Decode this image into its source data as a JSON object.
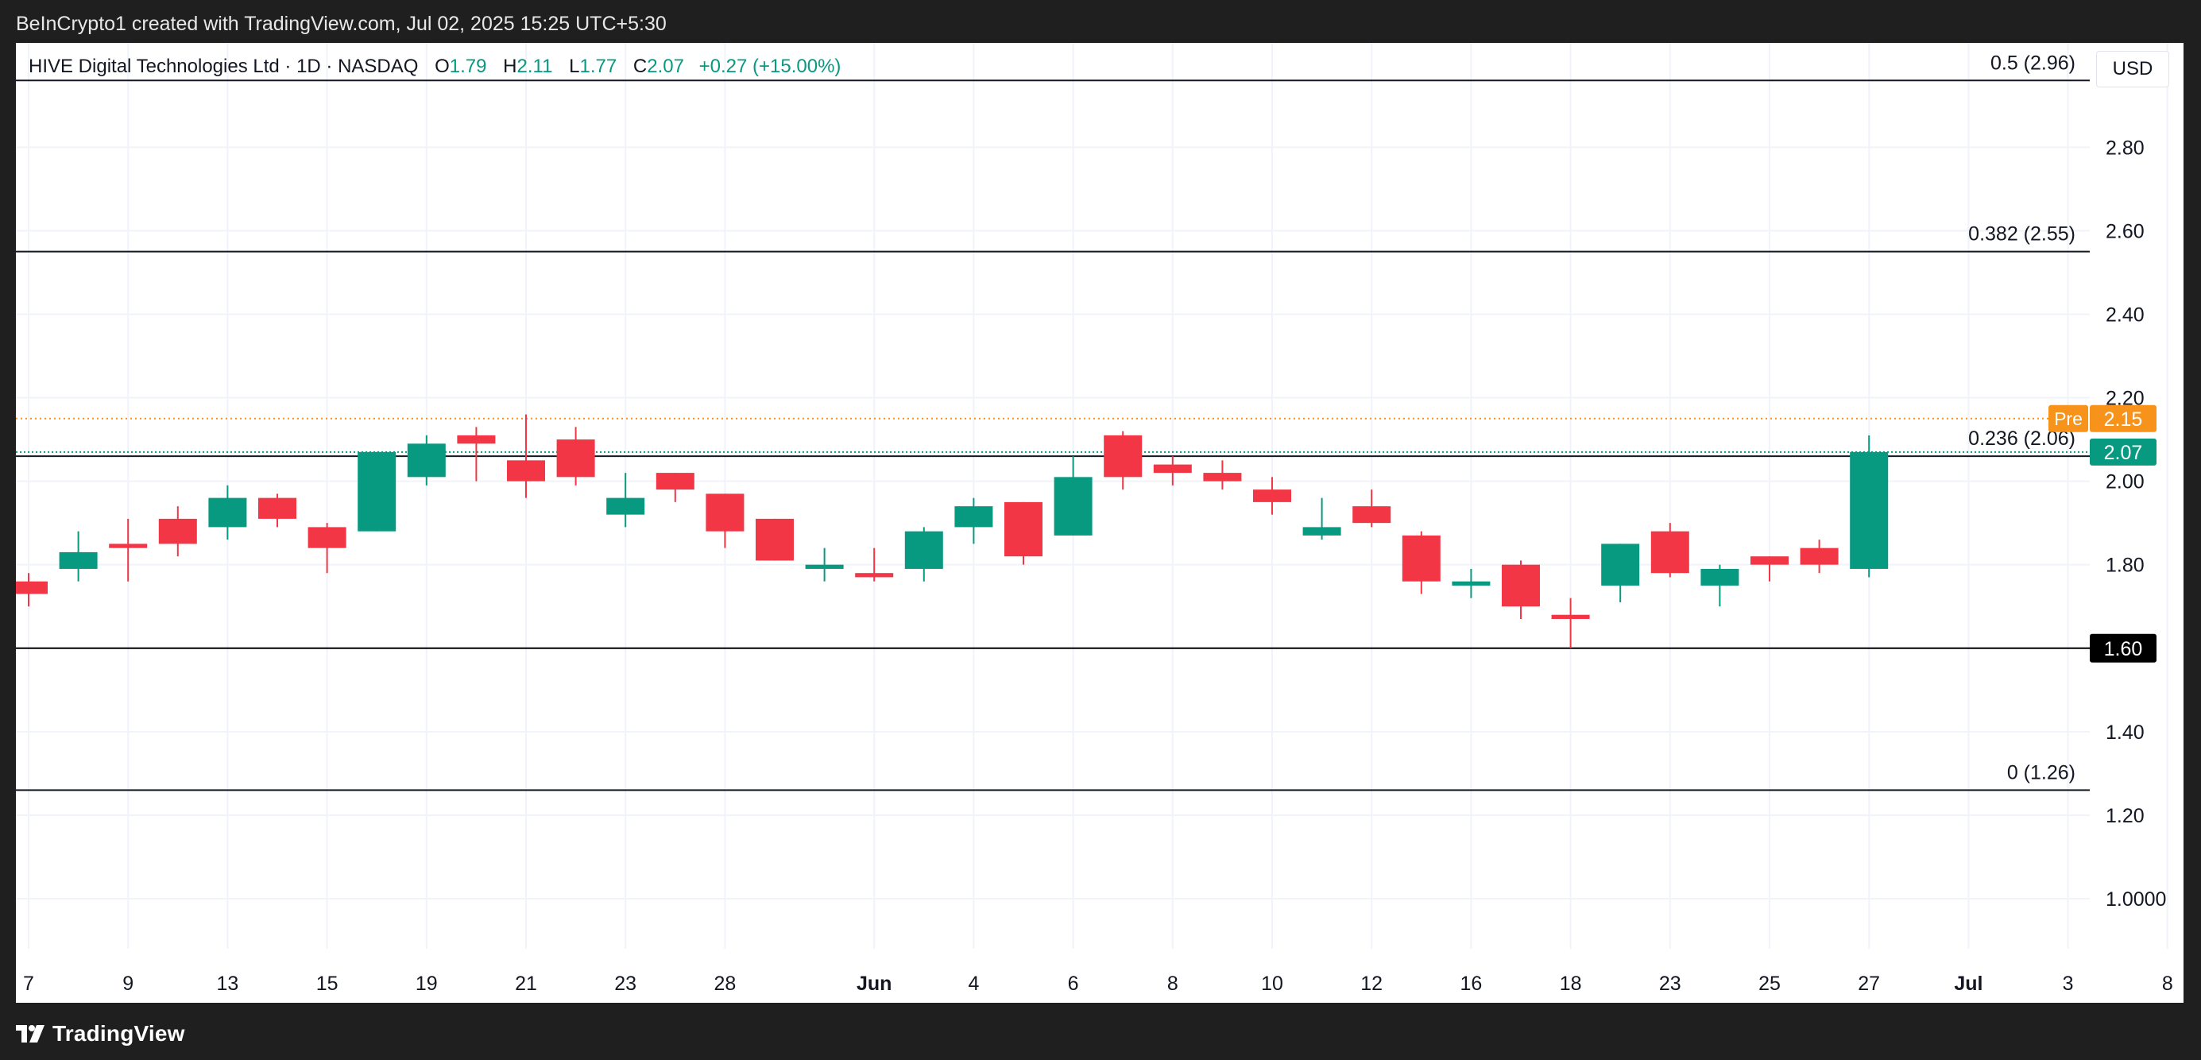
{
  "header": {
    "attribution": "BeInCrypto1 created with TradingView.com, Jul 02, 2025 15:25 UTC+5:30"
  },
  "legend": {
    "symbol": "HIVE Digital Technologies Ltd · 1D · NASDAQ",
    "open_label": "O",
    "open_value": "1.79",
    "high_label": "H",
    "high_value": "2.11",
    "low_label": "L",
    "low_value": "1.77",
    "close_label": "C",
    "close_value": "2.07",
    "change": "+0.27 (+15.00%)"
  },
  "currency": "USD",
  "footer": {
    "brand": "TradingView"
  },
  "colors": {
    "up": "#089981",
    "down": "#f23645",
    "pre": "#f7931a",
    "grid": "#f0f3fa",
    "fib": "#131722"
  },
  "chart_data": {
    "type": "candlestick",
    "title": "HIVE Digital Technologies Ltd · 1D · NASDAQ",
    "ylim": [
      0.88,
      3.05
    ],
    "grid": true,
    "y_ticks": [
      {
        "value": 2.8,
        "label": "2.80"
      },
      {
        "value": 2.6,
        "label": "2.60"
      },
      {
        "value": 2.4,
        "label": "2.40"
      },
      {
        "value": 2.2,
        "label": "2.20"
      },
      {
        "value": 2.0,
        "label": "2.00"
      },
      {
        "value": 1.8,
        "label": "1.80"
      },
      {
        "value": 1.4,
        "label": "1.40"
      },
      {
        "value": 1.2,
        "label": "1.20"
      },
      {
        "value": 1.0,
        "label": "1.0000"
      }
    ],
    "x_ticks": [
      "7",
      "9",
      "13",
      "15",
      "19",
      "21",
      "23",
      "28",
      "Jun",
      "4",
      "6",
      "8",
      "10",
      "12",
      "16",
      "18",
      "23",
      "25",
      "27",
      "Jul",
      "3",
      "8"
    ],
    "x_tick_bold": [
      false,
      false,
      false,
      false,
      false,
      false,
      false,
      false,
      true,
      false,
      false,
      false,
      false,
      false,
      false,
      false,
      false,
      false,
      false,
      true,
      false,
      false
    ],
    "candles": [
      {
        "date": "2025-05-07",
        "o": 1.76,
        "h": 1.78,
        "l": 1.7,
        "c": 1.73
      },
      {
        "date": "2025-05-08",
        "o": 1.79,
        "h": 1.88,
        "l": 1.76,
        "c": 1.83
      },
      {
        "date": "2025-05-09",
        "o": 1.85,
        "h": 1.91,
        "l": 1.76,
        "c": 1.84
      },
      {
        "date": "2025-05-12",
        "o": 1.91,
        "h": 1.94,
        "l": 1.82,
        "c": 1.85
      },
      {
        "date": "2025-05-13",
        "o": 1.89,
        "h": 1.99,
        "l": 1.86,
        "c": 1.96
      },
      {
        "date": "2025-05-14",
        "o": 1.96,
        "h": 1.97,
        "l": 1.89,
        "c": 1.91
      },
      {
        "date": "2025-05-15",
        "o": 1.89,
        "h": 1.9,
        "l": 1.78,
        "c": 1.84
      },
      {
        "date": "2025-05-16",
        "o": 1.88,
        "h": 2.07,
        "l": 1.88,
        "c": 2.07
      },
      {
        "date": "2025-05-19",
        "o": 2.01,
        "h": 2.11,
        "l": 1.99,
        "c": 2.09
      },
      {
        "date": "2025-05-20",
        "o": 2.11,
        "h": 2.13,
        "l": 2.0,
        "c": 2.09
      },
      {
        "date": "2025-05-21",
        "o": 2.05,
        "h": 2.16,
        "l": 1.96,
        "c": 2.0
      },
      {
        "date": "2025-05-22",
        "o": 2.1,
        "h": 2.13,
        "l": 1.99,
        "c": 2.01
      },
      {
        "date": "2025-05-23",
        "o": 1.92,
        "h": 2.02,
        "l": 1.89,
        "c": 1.96
      },
      {
        "date": "2025-05-27",
        "o": 2.02,
        "h": 2.02,
        "l": 1.95,
        "c": 1.98
      },
      {
        "date": "2025-05-28",
        "o": 1.97,
        "h": 1.97,
        "l": 1.84,
        "c": 1.88
      },
      {
        "date": "2025-05-29",
        "o": 1.91,
        "h": 1.91,
        "l": 1.81,
        "c": 1.81
      },
      {
        "date": "2025-05-30",
        "o": 1.79,
        "h": 1.84,
        "l": 1.76,
        "c": 1.8
      },
      {
        "date": "2025-06-02",
        "o": 1.78,
        "h": 1.84,
        "l": 1.76,
        "c": 1.77
      },
      {
        "date": "2025-06-03",
        "o": 1.79,
        "h": 1.89,
        "l": 1.76,
        "c": 1.88
      },
      {
        "date": "2025-06-04",
        "o": 1.89,
        "h": 1.96,
        "l": 1.85,
        "c": 1.94
      },
      {
        "date": "2025-06-05",
        "o": 1.95,
        "h": 1.95,
        "l": 1.8,
        "c": 1.82
      },
      {
        "date": "2025-06-06",
        "o": 1.87,
        "h": 2.06,
        "l": 1.87,
        "c": 2.01
      },
      {
        "date": "2025-06-09",
        "o": 2.11,
        "h": 2.12,
        "l": 1.98,
        "c": 2.01
      },
      {
        "date": "2025-06-10",
        "o": 2.04,
        "h": 2.06,
        "l": 1.99,
        "c": 2.02
      },
      {
        "date": "2025-06-11",
        "o": 2.02,
        "h": 2.05,
        "l": 1.98,
        "c": 2.0
      },
      {
        "date": "2025-06-12",
        "o": 1.98,
        "h": 2.01,
        "l": 1.92,
        "c": 1.95
      },
      {
        "date": "2025-06-13",
        "o": 1.87,
        "h": 1.96,
        "l": 1.86,
        "c": 1.89
      },
      {
        "date": "2025-06-16",
        "o": 1.94,
        "h": 1.98,
        "l": 1.89,
        "c": 1.9
      },
      {
        "date": "2025-06-17",
        "o": 1.87,
        "h": 1.88,
        "l": 1.73,
        "c": 1.76
      },
      {
        "date": "2025-06-18",
        "o": 1.75,
        "h": 1.79,
        "l": 1.72,
        "c": 1.76
      },
      {
        "date": "2025-06-20",
        "o": 1.8,
        "h": 1.81,
        "l": 1.67,
        "c": 1.7
      },
      {
        "date": "2025-06-23",
        "o": 1.68,
        "h": 1.72,
        "l": 1.6,
        "c": 1.67
      },
      {
        "date": "2025-06-24",
        "o": 1.75,
        "h": 1.85,
        "l": 1.71,
        "c": 1.85
      },
      {
        "date": "2025-06-25",
        "o": 1.88,
        "h": 1.9,
        "l": 1.77,
        "c": 1.78
      },
      {
        "date": "2025-06-26",
        "o": 1.75,
        "h": 1.8,
        "l": 1.7,
        "c": 1.79
      },
      {
        "date": "2025-06-27",
        "o": 1.82,
        "h": 1.82,
        "l": 1.76,
        "c": 1.8
      },
      {
        "date": "2025-06-30",
        "o": 1.84,
        "h": 1.86,
        "l": 1.78,
        "c": 1.8
      },
      {
        "date": "2025-07-01",
        "o": 1.79,
        "h": 2.11,
        "l": 1.77,
        "c": 2.07
      }
    ],
    "fib_levels": [
      {
        "value": 2.96,
        "label": "0.5 (2.96)"
      },
      {
        "value": 2.55,
        "label": "0.382 (2.55)"
      },
      {
        "value": 2.06,
        "label": "0.236 (2.06)"
      },
      {
        "value": 1.26,
        "label": "0 (1.26)"
      }
    ],
    "support_line": {
      "value": 1.6,
      "label": "1.60"
    },
    "last_price": {
      "value": 2.07,
      "label": "2.07"
    },
    "premarket": {
      "value": 2.15,
      "tag": "Pre",
      "label": "2.15"
    }
  }
}
